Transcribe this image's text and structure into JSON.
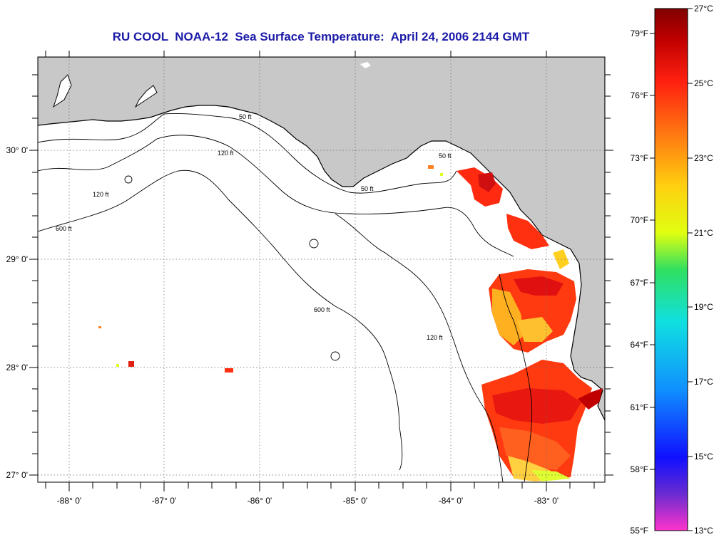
{
  "title": "RU COOL  NOAA-12  Sea Surface Temperature:  April 24, 2006 2144 GMT",
  "map": {
    "lon_labels": [
      "-88° 0'",
      "-87° 0'",
      "-86° 0'",
      "-85° 0'",
      "-84° 0'",
      "-83° 0'"
    ],
    "lat_labels": [
      "30° 0'",
      "29° 0'",
      "28° 0'",
      "27° 0'"
    ],
    "contour_labels": [
      "50 ft",
      "120 ft",
      "600 ft"
    ],
    "colors": {
      "land": "#c8c8c8",
      "ocean_nodata": "#ffffff",
      "grid": "#555555"
    }
  },
  "colorbar": {
    "fahrenheit_labels": [
      "79°F",
      "76°F",
      "73°F",
      "70°F",
      "67°F",
      "64°F",
      "61°F",
      "58°F",
      "55°F"
    ],
    "celsius_labels": [
      "27°C",
      "25°C",
      "23°C",
      "21°C",
      "19°C",
      "17°C",
      "15°C",
      "13°C"
    ],
    "range_c": [
      13,
      27
    ],
    "range_f": [
      55,
      80.6
    ],
    "colors": [
      "#ff33cc",
      "#6a2bd0",
      "#1010ff",
      "#1090ff",
      "#10e0e0",
      "#30e060",
      "#e0ff10",
      "#ffd010",
      "#ff8010",
      "#ff2010",
      "#c00000",
      "#800000"
    ]
  }
}
